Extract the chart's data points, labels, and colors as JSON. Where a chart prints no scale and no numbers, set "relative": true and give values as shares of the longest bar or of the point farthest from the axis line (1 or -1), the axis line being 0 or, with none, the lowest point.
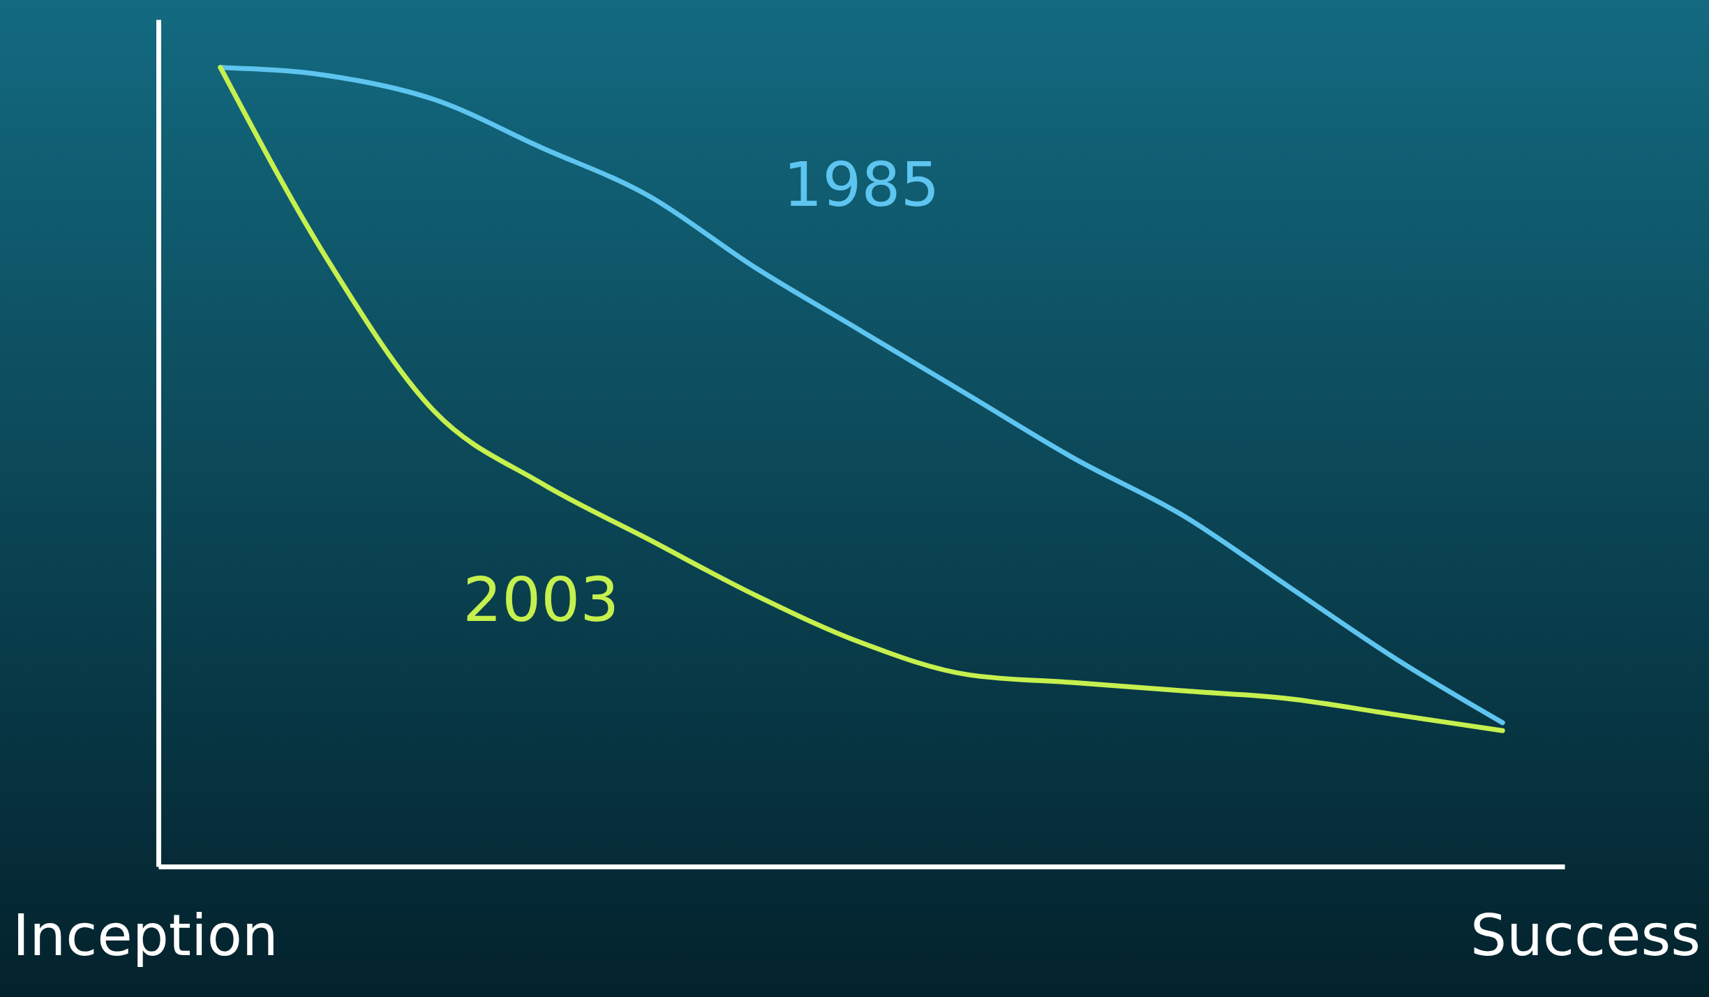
{
  "chart_data": {
    "type": "line",
    "relative": true,
    "categories": [
      null,
      null,
      null,
      null,
      null,
      null,
      null,
      null,
      null,
      null,
      null,
      null,
      null
    ],
    "legend": false,
    "grid": false,
    "annotations": [
      "Inception",
      "Success"
    ],
    "series": [
      {
        "name": "1985",
        "color": "#5ec4f0",
        "values": [
          1.0,
          0.99,
          0.96,
          0.9,
          0.84,
          0.75,
          0.67,
          0.59,
          0.51,
          0.44,
          0.35,
          0.26,
          0.18
        ]
      },
      {
        "name": "2003",
        "color": "#c6f04e",
        "values": [
          1.0,
          0.76,
          0.57,
          0.48,
          0.41,
          0.34,
          0.28,
          0.24,
          0.23,
          0.22,
          0.21,
          0.19,
          0.17
        ]
      }
    ]
  }
}
